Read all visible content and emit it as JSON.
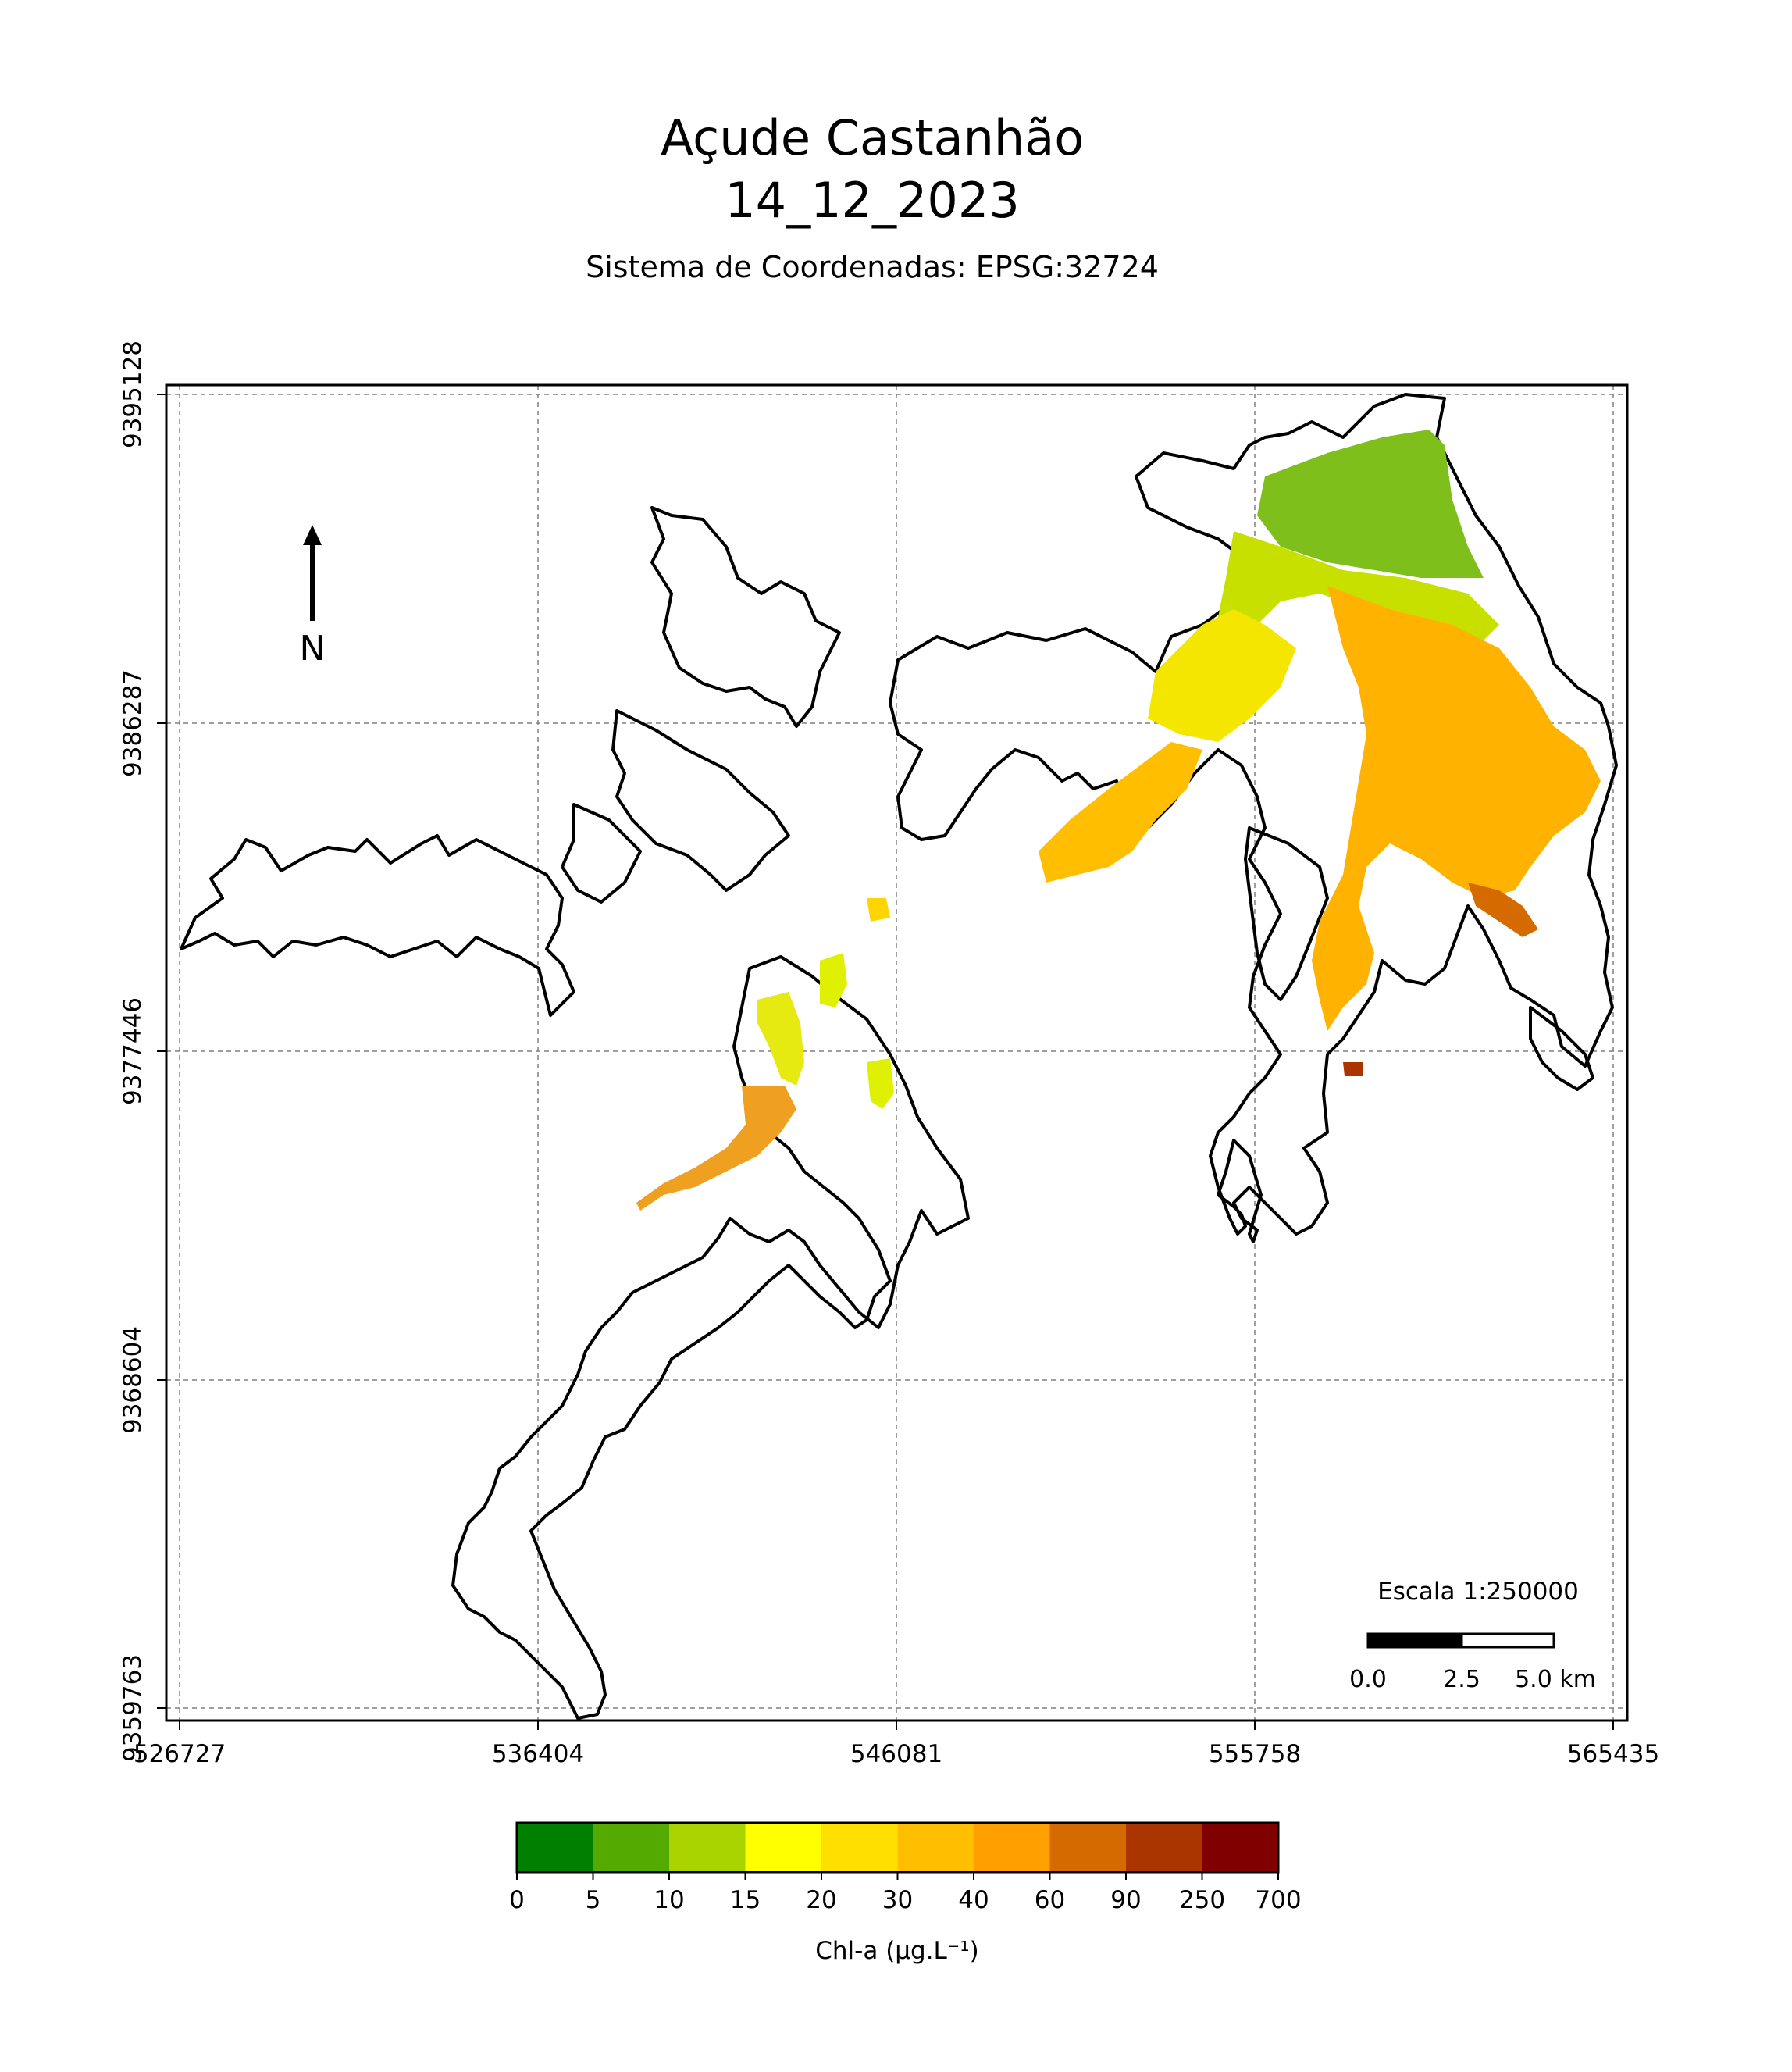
{
  "title": {
    "line1": "Açude Castanhão",
    "line2": "14_12_2023"
  },
  "subtitle": "Sistema de Coordenadas: EPSG:32724",
  "map": {
    "x_ticks": [
      "526727",
      "536404",
      "546081",
      "555758",
      "565435"
    ],
    "y_ticks": [
      "9395128",
      "9386287",
      "9377446",
      "9368604",
      "9359763"
    ],
    "grid": true,
    "north_arrow_label": "N",
    "scale_bar": {
      "title": "Escala 1:250000",
      "labels": [
        "0.0",
        "2.5",
        "5.0 km"
      ]
    }
  },
  "colorbar": {
    "label": "Chl-a (μg.L⁻¹)",
    "ticks": [
      "0",
      "5",
      "10",
      "15",
      "20",
      "30",
      "40",
      "60",
      "90",
      "250",
      "700"
    ],
    "colors": [
      "#007f00",
      "#55aa00",
      "#aad400",
      "#ffff00",
      "#ffdf00",
      "#ffbf00",
      "#ffa000",
      "#d46a00",
      "#aa3500",
      "#800000"
    ]
  }
}
